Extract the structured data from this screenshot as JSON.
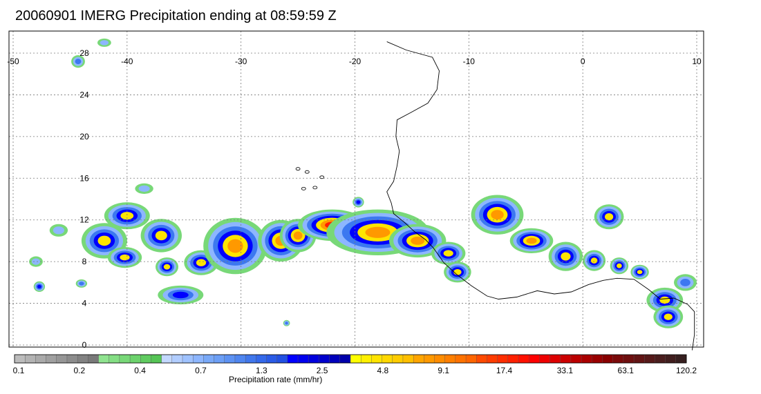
{
  "title": "20060901 IMERG Precipitation ending at 08:59:59 Z",
  "map": {
    "lon_range": [
      -50,
      10
    ],
    "lat_range": [
      -1,
      29
    ],
    "lon_ticks": [
      -50,
      -40,
      -30,
      -20,
      -10,
      0,
      10
    ],
    "lat_ticks": [
      0,
      4,
      8,
      12,
      16,
      20,
      24,
      28
    ],
    "lon_labels": [
      "-50",
      "-40",
      "-30",
      "-20",
      "-10",
      "0",
      "10"
    ],
    "lat_labels": [
      "0",
      "4",
      "8",
      "12",
      "16",
      "20",
      "24",
      "28"
    ],
    "grid": "dotted",
    "coastline_color": "#000000",
    "coastline_lonlat": [
      [
        -17.2,
        29.1
      ],
      [
        -15.5,
        28.3
      ],
      [
        -13.2,
        27.6
      ],
      [
        -12.6,
        26.3
      ],
      [
        -12.8,
        24.5
      ],
      [
        -13.6,
        23.2
      ],
      [
        -15.1,
        22.3
      ],
      [
        -16.3,
        21.6
      ],
      [
        -16.4,
        20.0
      ],
      [
        -16.1,
        18.6
      ],
      [
        -16.3,
        17.2
      ],
      [
        -16.6,
        15.7
      ],
      [
        -17.2,
        14.7
      ],
      [
        -16.8,
        13.6
      ],
      [
        -16.6,
        12.6
      ],
      [
        -15.7,
        11.8
      ],
      [
        -14.8,
        10.9
      ],
      [
        -13.8,
        10.1
      ],
      [
        -13.1,
        9.3
      ],
      [
        -12.2,
        7.9
      ],
      [
        -11.1,
        6.8
      ],
      [
        -9.8,
        5.7
      ],
      [
        -8.4,
        4.7
      ],
      [
        -7.4,
        4.4
      ],
      [
        -5.8,
        4.6
      ],
      [
        -4.0,
        5.2
      ],
      [
        -2.5,
        4.9
      ],
      [
        -1.0,
        5.1
      ],
      [
        0.5,
        5.8
      ],
      [
        1.8,
        6.2
      ],
      [
        3.0,
        6.4
      ],
      [
        4.5,
        6.3
      ],
      [
        5.8,
        5.3
      ],
      [
        6.8,
        4.4
      ],
      [
        8.0,
        4.5
      ],
      [
        9.2,
        3.9
      ],
      [
        9.8,
        3.2
      ],
      [
        9.8,
        1.0
      ],
      [
        9.6,
        -0.5
      ]
    ],
    "precip_cells": [
      {
        "lon": -42.0,
        "lat": 10.0,
        "rx": 2.0,
        "ry": 1.7,
        "level": 4
      },
      {
        "lon": -40.0,
        "lat": 12.4,
        "rx": 2.0,
        "ry": 1.3,
        "level": 4
      },
      {
        "lon": -40.2,
        "lat": 8.4,
        "rx": 1.5,
        "ry": 1.0,
        "level": 4
      },
      {
        "lon": -37.0,
        "lat": 10.5,
        "rx": 1.8,
        "ry": 1.6,
        "level": 4
      },
      {
        "lon": -36.5,
        "lat": 7.5,
        "rx": 1.0,
        "ry": 0.9,
        "level": 4
      },
      {
        "lon": -33.5,
        "lat": 7.9,
        "rx": 1.5,
        "ry": 1.2,
        "level": 4
      },
      {
        "lon": -35.3,
        "lat": 4.8,
        "rx": 2.0,
        "ry": 0.9,
        "level": 3
      },
      {
        "lon": -30.5,
        "lat": 9.5,
        "rx": 2.8,
        "ry": 2.7,
        "level": 5
      },
      {
        "lon": -26.5,
        "lat": 10.0,
        "rx": 2.0,
        "ry": 2.0,
        "level": 5
      },
      {
        "lon": -25.0,
        "lat": 10.5,
        "rx": 1.6,
        "ry": 1.6,
        "level": 5
      },
      {
        "lon": -22.0,
        "lat": 11.5,
        "rx": 3.0,
        "ry": 1.5,
        "level": 6
      },
      {
        "lon": -18.0,
        "lat": 10.8,
        "rx": 4.5,
        "ry": 2.2,
        "level": 5
      },
      {
        "lon": -14.5,
        "lat": 10.0,
        "rx": 2.5,
        "ry": 1.6,
        "level": 5
      },
      {
        "lon": -11.8,
        "lat": 8.8,
        "rx": 1.5,
        "ry": 1.1,
        "level": 4
      },
      {
        "lon": -11.0,
        "lat": 7.0,
        "rx": 1.2,
        "ry": 1.0,
        "level": 4
      },
      {
        "lon": -7.5,
        "lat": 12.5,
        "rx": 2.3,
        "ry": 1.9,
        "level": 5
      },
      {
        "lon": -4.5,
        "lat": 10.0,
        "rx": 1.9,
        "ry": 1.2,
        "level": 5
      },
      {
        "lon": -1.5,
        "lat": 8.5,
        "rx": 1.5,
        "ry": 1.4,
        "level": 4
      },
      {
        "lon": 1.0,
        "lat": 8.1,
        "rx": 1.0,
        "ry": 1.0,
        "level": 4
      },
      {
        "lon": 2.3,
        "lat": 12.3,
        "rx": 1.3,
        "ry": 1.2,
        "level": 4
      },
      {
        "lon": 3.2,
        "lat": 7.6,
        "rx": 0.8,
        "ry": 0.8,
        "level": 4
      },
      {
        "lon": 5.0,
        "lat": 7.0,
        "rx": 0.8,
        "ry": 0.7,
        "level": 4
      },
      {
        "lon": 7.2,
        "lat": 4.3,
        "rx": 1.6,
        "ry": 1.2,
        "level": 4
      },
      {
        "lon": 7.5,
        "lat": 2.7,
        "rx": 1.3,
        "ry": 1.1,
        "level": 4
      },
      {
        "lon": -47.7,
        "lat": 5.6,
        "rx": 0.5,
        "ry": 0.5,
        "level": 3
      },
      {
        "lon": -44.0,
        "lat": 5.9,
        "rx": 0.5,
        "ry": 0.4,
        "level": 2
      },
      {
        "lon": -44.3,
        "lat": 27.2,
        "rx": 0.6,
        "ry": 0.6,
        "level": 2
      },
      {
        "lon": -26.0,
        "lat": 2.1,
        "rx": 0.3,
        "ry": 0.3,
        "level": 2
      },
      {
        "lon": -19.7,
        "lat": 13.7,
        "rx": 0.5,
        "ry": 0.5,
        "level": 3
      },
      {
        "lon": -48.0,
        "lat": 8.0,
        "rx": 0.6,
        "ry": 0.5,
        "level": 1
      },
      {
        "lon": -46.0,
        "lat": 11.0,
        "rx": 0.8,
        "ry": 0.6,
        "level": 1
      },
      {
        "lon": -38.5,
        "lat": 15.0,
        "rx": 0.8,
        "ry": 0.5,
        "level": 1
      },
      {
        "lon": -42.0,
        "lat": 29.0,
        "rx": 0.6,
        "ry": 0.4,
        "level": 1
      },
      {
        "lon": 9.0,
        "lat": 6.0,
        "rx": 1.0,
        "ry": 0.8,
        "level": 2
      }
    ]
  },
  "colorbar": {
    "colors": [
      "#bcbcbc",
      "#b3b3b3",
      "#aaaaaa",
      "#a0a0a0",
      "#969696",
      "#8c8c8c",
      "#828282",
      "#797979",
      "#8fe38f",
      "#84de84",
      "#78d878",
      "#6cd26c",
      "#60cb60",
      "#55c455",
      "#c3d8ff",
      "#b1cdff",
      "#9fc2ff",
      "#8db6ff",
      "#79a9f8",
      "#6c9ff6",
      "#5d92f3",
      "#4f86f0",
      "#4077ec",
      "#3469ea",
      "#2a5be6",
      "#2250e2",
      "#0000ff",
      "#0000ee",
      "#0000dd",
      "#0000cc",
      "#0000bb",
      "#0000aa",
      "#ffff00",
      "#fff000",
      "#ffe400",
      "#ffd800",
      "#ffcc00",
      "#ffbf00",
      "#ffa500",
      "#ff9900",
      "#ff8c00",
      "#ff7f00",
      "#ff7200",
      "#ff6500",
      "#ff4a00",
      "#ff3c00",
      "#ff2e00",
      "#ff2000",
      "#ff1000",
      "#ff0000",
      "#ee0000",
      "#dd0000",
      "#cc0000",
      "#bb0000",
      "#aa0000",
      "#990000",
      "#880000",
      "#7a0a0a",
      "#6e0f0f",
      "#621414",
      "#561919",
      "#4a1d1d",
      "#401e1e",
      "#361f1f"
    ],
    "tick_labels": [
      "0.1",
      "0.2",
      "0.4",
      "0.7",
      "1.3",
      "2.5",
      "4.8",
      "9.1",
      "17.4",
      "33.1",
      "63.1",
      "120.2"
    ],
    "units": "Precipitation rate (mm/hr)"
  },
  "precip_palette": {
    "gray": "#a0a0a0",
    "green": "#78d878",
    "light_blue": "#8db6ff",
    "blue": "#3c78f0",
    "dark_blue": "#0000ff",
    "yellow": "#ffe400",
    "orange": "#ff9900",
    "red": "#ff2000",
    "dark_red": "#aa0000"
  }
}
